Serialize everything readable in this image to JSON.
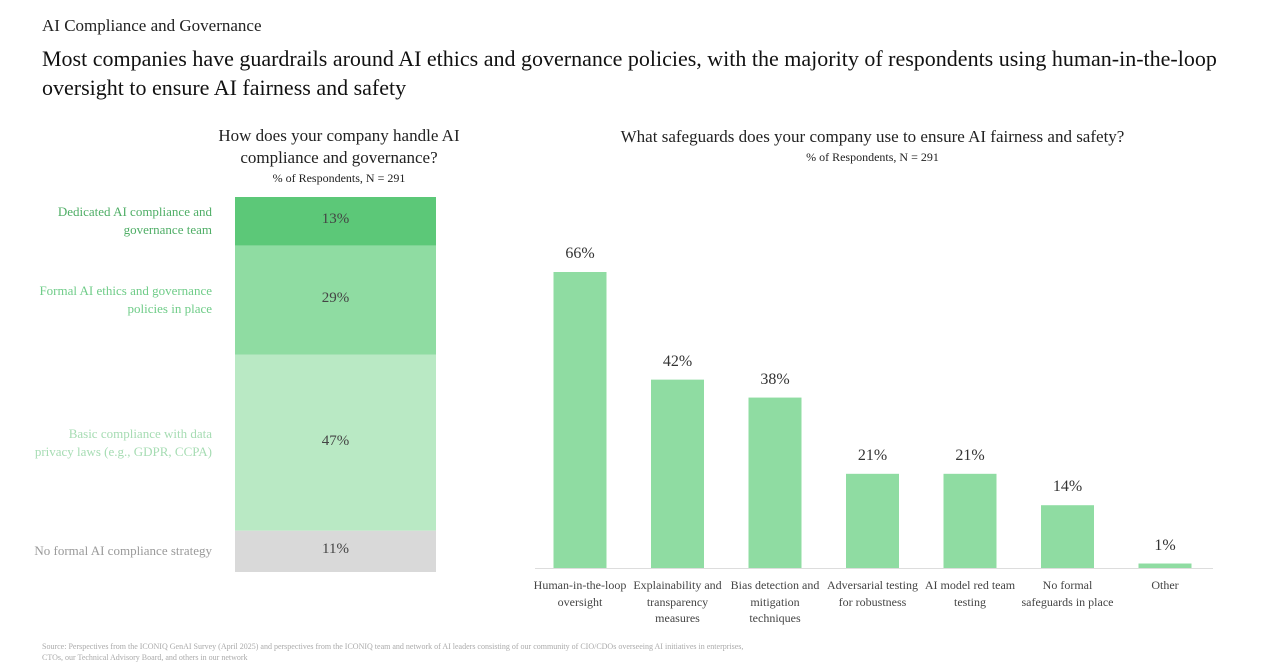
{
  "header": {
    "section": "AI Compliance and Governance",
    "title": "Most companies have guardrails around AI ethics and governance policies, with the majority of respondents using human-in-the-loop oversight to ensure AI fairness and safety",
    "source": "Source: Perspectives from the ICONIQ GenAI Survey (April 2025) and perspectives from the ICONIQ team and network of AI leaders consisting of our community of CIO/CDOs overseeing AI initiatives in enterprises, CTOs, our Technical Advisory Board, and others in our network"
  },
  "chart_data": [
    {
      "type": "stacked-bar",
      "title": "How does your company handle AI compliance and governance?",
      "subtitle": "% of Respondents, N = 291",
      "categories": [
        "Dedicated AI compliance and governance team",
        "Formal AI ethics and governance policies in place",
        "Basic compliance with data privacy laws (e.g., GDPR, CCPA)",
        "No formal AI compliance strategy"
      ],
      "values": [
        13,
        29,
        47,
        11
      ],
      "value_labels": [
        "13%",
        "29%",
        "47%",
        "11%"
      ],
      "colors": [
        "#5cc878",
        "#8fdca2",
        "#b9e9c4",
        "#d9d9d9"
      ],
      "label_colors": [
        "#4fae66",
        "#6fcc88",
        "#a6dcb3",
        "#9a9a9a"
      ]
    },
    {
      "type": "bar",
      "title": "What safeguards does your company use to ensure AI fairness and safety?",
      "subtitle": "% of Respondents, N = 291",
      "categories": [
        "Human-in-the-loop oversight",
        "Explainability and transparency measures",
        "Bias detection and mitigation techniques",
        "Adversarial testing for robustness",
        "AI model red team testing",
        "No formal safeguards in place",
        "Other"
      ],
      "values": [
        66,
        42,
        38,
        21,
        21,
        14,
        1
      ],
      "value_labels": [
        "66%",
        "42%",
        "38%",
        "21%",
        "21%",
        "14%",
        "1%"
      ],
      "color": "#8fdca2"
    }
  ]
}
